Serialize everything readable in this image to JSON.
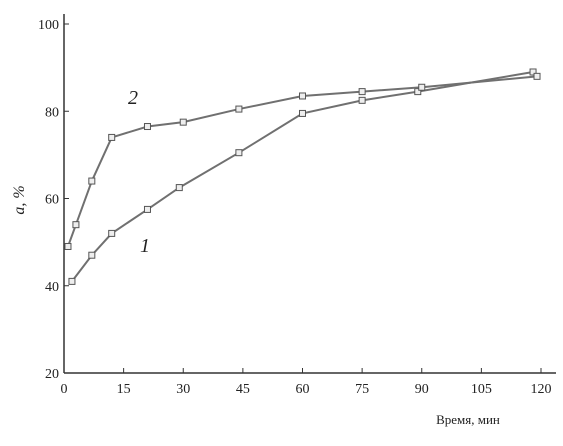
{
  "chart_data": {
    "type": "line",
    "xlabel": "Время, мин",
    "ylabel": "a, %",
    "xlim": [
      0,
      120
    ],
    "xticks": [
      0,
      15,
      30,
      45,
      60,
      75,
      90,
      105,
      120
    ],
    "ylim": [
      20,
      100
    ],
    "yticks": [
      20,
      40,
      60,
      80,
      100
    ],
    "series": [
      {
        "name": "1",
        "color": "#707070",
        "x": [
          2,
          7,
          12,
          21,
          29,
          44,
          60,
          75,
          89,
          118
        ],
        "values": [
          41,
          47,
          52,
          57.5,
          62.5,
          70.5,
          79.5,
          82.5,
          84.5,
          89
        ]
      },
      {
        "name": "2",
        "color": "#707070",
        "x": [
          1,
          3,
          7,
          12,
          21,
          30,
          44,
          60,
          75,
          90,
          119
        ],
        "values": [
          49,
          54,
          64,
          74,
          76.5,
          77.5,
          80.5,
          83.5,
          84.5,
          85.5,
          88
        ]
      }
    ]
  }
}
